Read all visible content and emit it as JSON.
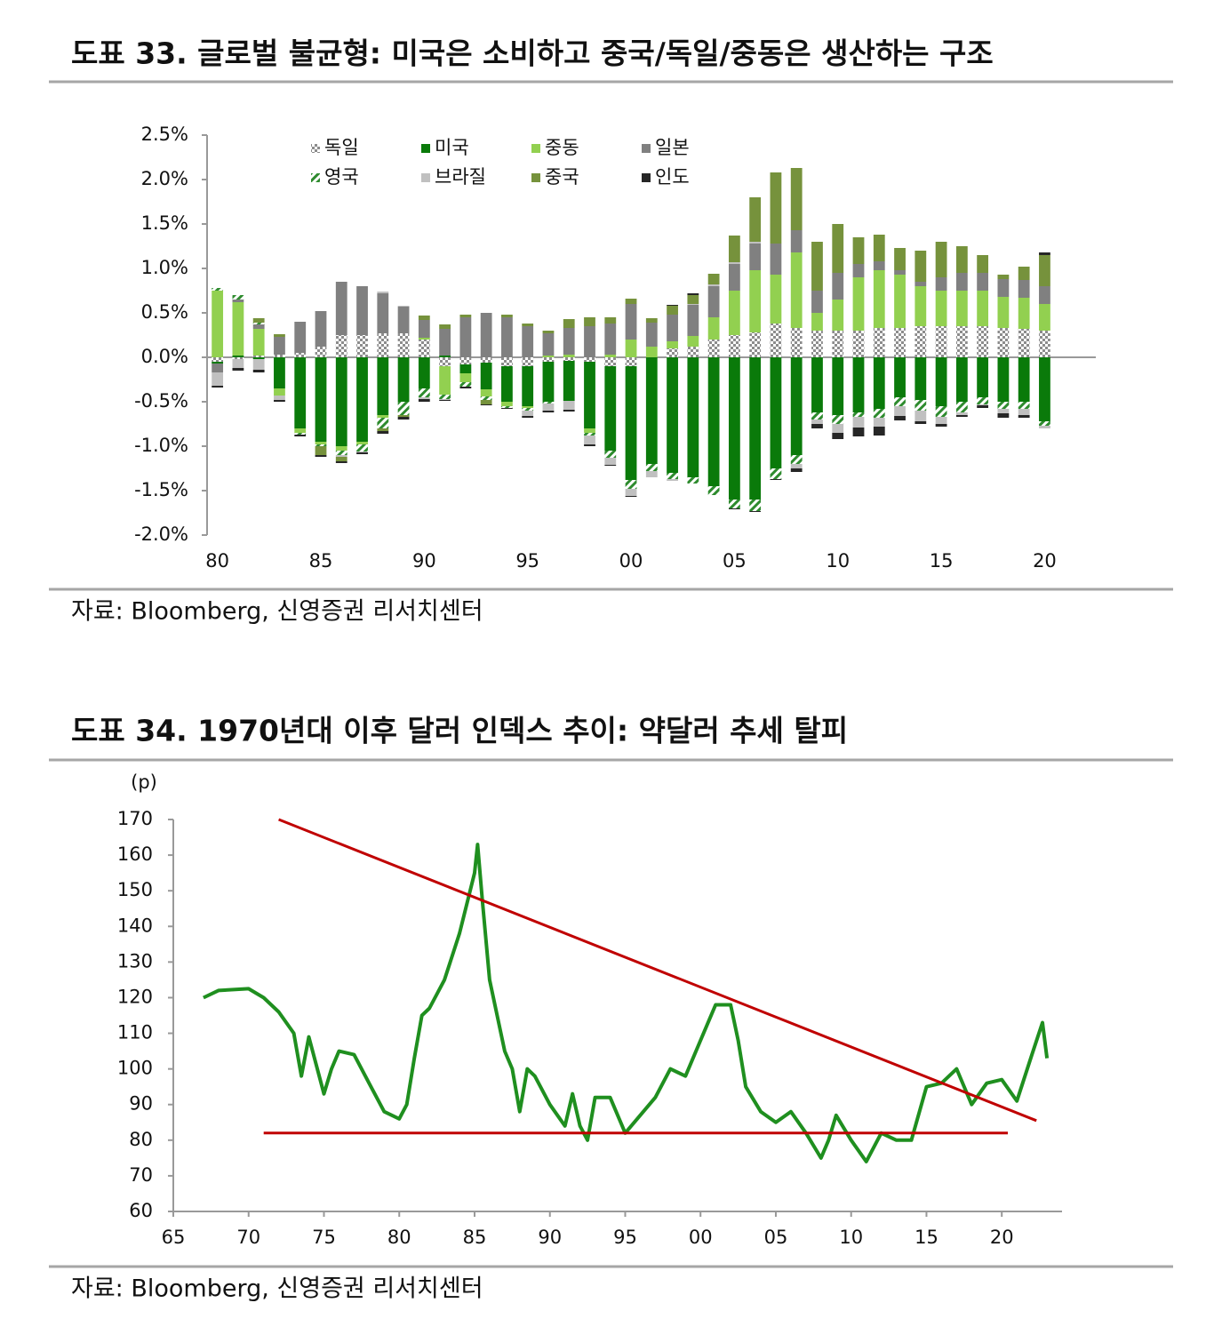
{
  "chart_data": [
    {
      "type": "bar",
      "stacked": true,
      "title": "도표 33. 글로벌 불균형: 미국은 소비하고 중국/독일/중동은 생산하는 구조",
      "source": "자료: Bloomberg, 신영증권 리서치센터",
      "categories": [
        "80",
        null,
        null,
        null,
        null,
        "85",
        null,
        null,
        null,
        null,
        "90",
        null,
        null,
        null,
        null,
        "95",
        null,
        null,
        null,
        null,
        "00",
        null,
        null,
        null,
        null,
        "05",
        null,
        null,
        null,
        null,
        "10",
        null,
        null,
        null,
        null,
        "15",
        null,
        null,
        null,
        null,
        "20"
      ],
      "ylim": [
        -2,
        2.5
      ],
      "yticks": [
        {
          "value": 2.5,
          "label": "2.5%"
        },
        {
          "value": 2,
          "label": "2.0%"
        },
        {
          "value": 1.5,
          "label": "1.5%"
        },
        {
          "value": 1,
          "label": "1.0%"
        },
        {
          "value": 0.5,
          "label": "0.5%"
        },
        {
          "value": 0,
          "label": "0.0%"
        },
        {
          "value": -0.5,
          "label": "-0.5%"
        },
        {
          "value": -1,
          "label": "-1.0%"
        },
        {
          "value": -1.5,
          "label": "-1.5%"
        },
        {
          "value": -2,
          "label": "-2.0%"
        }
      ],
      "series": [
        {
          "name": "독일",
          "color": "#8c8c8c",
          "pattern": "checker",
          "values": [
            -0.05,
            -0.02,
            0.02,
            0.03,
            0.05,
            0.12,
            0.25,
            0.25,
            0.27,
            0.27,
            0.2,
            -0.1,
            -0.08,
            -0.06,
            -0.1,
            -0.1,
            -0.05,
            -0.04,
            -0.05,
            -0.1,
            -0.1,
            0.0,
            0.1,
            0.12,
            0.2,
            0.25,
            0.28,
            0.38,
            0.33,
            0.3,
            0.3,
            0.3,
            0.33,
            0.33,
            0.35,
            0.35,
            0.35,
            0.35,
            0.33,
            0.32,
            0.3
          ]
        },
        {
          "name": "미국",
          "color": "#0a7a0a",
          "values": [
            -0.02,
            0.02,
            -0.02,
            -0.35,
            -0.8,
            -0.95,
            -1.0,
            -0.95,
            -0.65,
            -0.5,
            -0.35,
            0.02,
            -0.1,
            -0.3,
            -0.4,
            -0.45,
            -0.45,
            -0.45,
            -0.75,
            -0.95,
            -1.28,
            -1.2,
            -1.3,
            -1.35,
            -1.45,
            -1.6,
            -1.6,
            -1.25,
            -1.1,
            -0.62,
            -0.65,
            -0.62,
            -0.58,
            -0.45,
            -0.48,
            -0.55,
            -0.5,
            -0.45,
            -0.5,
            -0.5,
            -0.72
          ]
        },
        {
          "name": "중동",
          "color": "#92d050",
          "values": [
            0.75,
            0.6,
            0.3,
            -0.08,
            -0.05,
            -0.03,
            -0.05,
            -0.03,
            -0.03,
            0.0,
            0.02,
            -0.32,
            -0.1,
            -0.08,
            -0.05,
            -0.02,
            0.02,
            0.03,
            -0.05,
            0.03,
            0.2,
            0.12,
            0.08,
            0.12,
            0.25,
            0.5,
            0.7,
            0.55,
            0.85,
            0.2,
            0.35,
            0.6,
            0.65,
            0.6,
            0.45,
            0.4,
            0.4,
            0.4,
            0.35,
            0.35,
            0.3
          ]
        },
        {
          "name": "일본",
          "color": "#808080",
          "values": [
            -0.1,
            0.03,
            0.05,
            0.2,
            0.35,
            0.4,
            0.6,
            0.55,
            0.45,
            0.3,
            0.2,
            0.3,
            0.45,
            0.5,
            0.45,
            0.35,
            0.25,
            0.3,
            0.35,
            0.35,
            0.4,
            0.27,
            0.3,
            0.35,
            0.35,
            0.3,
            0.3,
            0.35,
            0.25,
            0.25,
            0.3,
            0.15,
            0.1,
            0.05,
            0.05,
            0.15,
            0.2,
            0.2,
            0.2,
            0.2,
            0.2
          ]
        },
        {
          "name": "영국",
          "color": "#2e8b2e",
          "pattern": "hatch",
          "values": [
            0.03,
            0.05,
            0.02,
            0.0,
            -0.02,
            -0.02,
            -0.05,
            -0.08,
            -0.12,
            -0.15,
            -0.1,
            -0.05,
            -0.05,
            -0.04,
            -0.02,
            -0.03,
            -0.02,
            0.0,
            -0.03,
            -0.08,
            -0.1,
            -0.08,
            -0.07,
            -0.07,
            -0.1,
            -0.1,
            -0.13,
            -0.12,
            -0.1,
            -0.08,
            -0.1,
            -0.05,
            -0.1,
            -0.1,
            -0.12,
            -0.12,
            -0.12,
            -0.08,
            -0.08,
            -0.08,
            -0.05
          ]
        },
        {
          "name": "브라질",
          "color": "#c0c0c0",
          "values": [
            -0.15,
            -0.1,
            -0.12,
            -0.05,
            0.0,
            0.0,
            -0.02,
            -0.01,
            0.02,
            0.01,
            -0.02,
            -0.01,
            0.0,
            0.0,
            0.0,
            -0.06,
            -0.08,
            -0.1,
            -0.1,
            -0.08,
            -0.08,
            -0.07,
            -0.02,
            0.01,
            0.02,
            0.02,
            0.02,
            0.0,
            -0.05,
            -0.05,
            -0.1,
            -0.12,
            -0.1,
            -0.11,
            -0.12,
            -0.08,
            -0.03,
            -0.01,
            -0.05,
            -0.07,
            -0.03
          ]
        },
        {
          "name": "중국",
          "color": "#76923c",
          "values": [
            0.0,
            0.0,
            0.05,
            0.03,
            0.0,
            -0.1,
            -0.05,
            0.0,
            -0.03,
            -0.02,
            0.05,
            0.05,
            0.03,
            -0.05,
            0.03,
            0.03,
            0.03,
            0.1,
            0.1,
            0.07,
            0.06,
            0.05,
            0.1,
            0.1,
            0.12,
            0.3,
            0.5,
            0.8,
            0.7,
            0.55,
            0.55,
            0.3,
            0.3,
            0.25,
            0.35,
            0.4,
            0.3,
            0.2,
            0.05,
            0.15,
            0.35
          ]
        },
        {
          "name": "인도",
          "color": "#262626",
          "values": [
            -0.02,
            -0.03,
            -0.03,
            -0.02,
            -0.02,
            -0.02,
            -0.02,
            -0.02,
            -0.03,
            -0.03,
            -0.03,
            -0.01,
            -0.02,
            -0.01,
            -0.01,
            -0.02,
            -0.02,
            -0.02,
            -0.02,
            -0.01,
            -0.01,
            0.0,
            0.01,
            0.02,
            0.0,
            -0.01,
            -0.01,
            -0.01,
            -0.04,
            -0.05,
            -0.07,
            -0.1,
            -0.1,
            -0.05,
            -0.03,
            -0.03,
            -0.02,
            -0.03,
            -0.05,
            -0.03,
            0.03
          ]
        }
      ]
    },
    {
      "type": "line",
      "title": "도표 34. 1970년대 이후 달러 인덱스 추이: 약달러 추세 탈피",
      "source": "자료: Bloomberg, 신영증권 리서치센터",
      "y_label": "(p)",
      "color": "#1f8f1f",
      "x": [
        1967,
        1968,
        1970,
        1971,
        1972,
        1973,
        1973.5,
        1974,
        1975,
        1975.5,
        1976,
        1977,
        1978,
        1979,
        1980,
        1980.5,
        1981,
        1981.5,
        1982,
        1983,
        1984,
        1985,
        1985.2,
        1985.5,
        1986,
        1987,
        1987.5,
        1988,
        1988.5,
        1989,
        1990,
        1991,
        1991.5,
        1992,
        1992.5,
        1993,
        1994,
        1995,
        1996,
        1997,
        1998,
        1999,
        2000,
        2001,
        2002,
        2002.5,
        2003,
        2004,
        2005,
        2006,
        2007,
        2008,
        2008.5,
        2009,
        2010,
        2011,
        2012,
        2013,
        2014,
        2015,
        2016,
        2017,
        2018,
        2019,
        2020,
        2021,
        2022,
        2022.7,
        2023
      ],
      "values": [
        120,
        122,
        122.5,
        120,
        116,
        110,
        98,
        109,
        93,
        100,
        105,
        104,
        96,
        88,
        86,
        90,
        103,
        115,
        117,
        125,
        138,
        155,
        163,
        148,
        125,
        105,
        100,
        88,
        100,
        98,
        90,
        84,
        93,
        84,
        80,
        92,
        92,
        82,
        87,
        92,
        100,
        98,
        108,
        118,
        118,
        108,
        95,
        88,
        85,
        88,
        82,
        75,
        80,
        87,
        80,
        74,
        82,
        80,
        80,
        95,
        96,
        100,
        90,
        96,
        97,
        91,
        104,
        113,
        103
      ],
      "trend_lines": [
        {
          "color": "#c00000",
          "x": [
            1972,
            2022.3
          ],
          "values": [
            170,
            85.5
          ]
        },
        {
          "color": "#c00000",
          "x": [
            1971,
            2020.4
          ],
          "values": [
            82,
            82
          ]
        }
      ],
      "xlim": [
        1965,
        2024
      ],
      "xticks": [
        {
          "value": 1965,
          "label": "65"
        },
        {
          "value": 1970,
          "label": "70"
        },
        {
          "value": 1975,
          "label": "75"
        },
        {
          "value": 1980,
          "label": "80"
        },
        {
          "value": 1985,
          "label": "85"
        },
        {
          "value": 1990,
          "label": "90"
        },
        {
          "value": 1995,
          "label": "95"
        },
        {
          "value": 2000,
          "label": "00"
        },
        {
          "value": 2005,
          "label": "05"
        },
        {
          "value": 2010,
          "label": "10"
        },
        {
          "value": 2015,
          "label": "15"
        },
        {
          "value": 2020,
          "label": "20"
        }
      ],
      "ylim": [
        60,
        170
      ],
      "yticks": [
        60,
        70,
        80,
        90,
        100,
        110,
        120,
        130,
        140,
        150,
        160,
        170
      ]
    }
  ]
}
